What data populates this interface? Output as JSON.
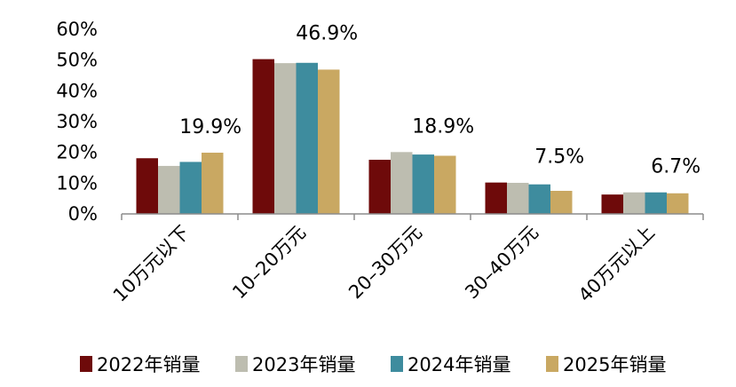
{
  "chart_data": {
    "type": "bar",
    "title": "",
    "xlabel": "",
    "ylabel": "",
    "ylim": [
      0,
      60
    ],
    "y_ticks": [
      "0%",
      "10%",
      "20%",
      "30%",
      "40%",
      "50%",
      "60%"
    ],
    "y_tick_values": [
      0,
      10,
      20,
      30,
      40,
      50,
      60
    ],
    "grid": false,
    "legend_position": "bottom",
    "categories": [
      "10万元以下",
      "10–20万元",
      "20–30万元",
      "30–40万元",
      "40万元以上"
    ],
    "series": [
      {
        "name": "2022年销量",
        "color": "#6E0A0A",
        "values": [
          18.1,
          50.3,
          17.6,
          10.2,
          6.3
        ]
      },
      {
        "name": "2023年销量",
        "color": "#BDBDB0",
        "values": [
          15.6,
          49.0,
          20.1,
          10.1,
          7.0
        ]
      },
      {
        "name": "2024年销量",
        "color": "#3E8C9E",
        "values": [
          16.9,
          49.1,
          19.3,
          9.6,
          7.0
        ]
      },
      {
        "name": "2025年销量",
        "color": "#C9A862",
        "values": [
          19.9,
          46.9,
          18.9,
          7.5,
          6.7
        ]
      }
    ],
    "data_labels": [
      "19.9%",
      "46.9%",
      "18.9%",
      "7.5%",
      "6.7%"
    ]
  }
}
